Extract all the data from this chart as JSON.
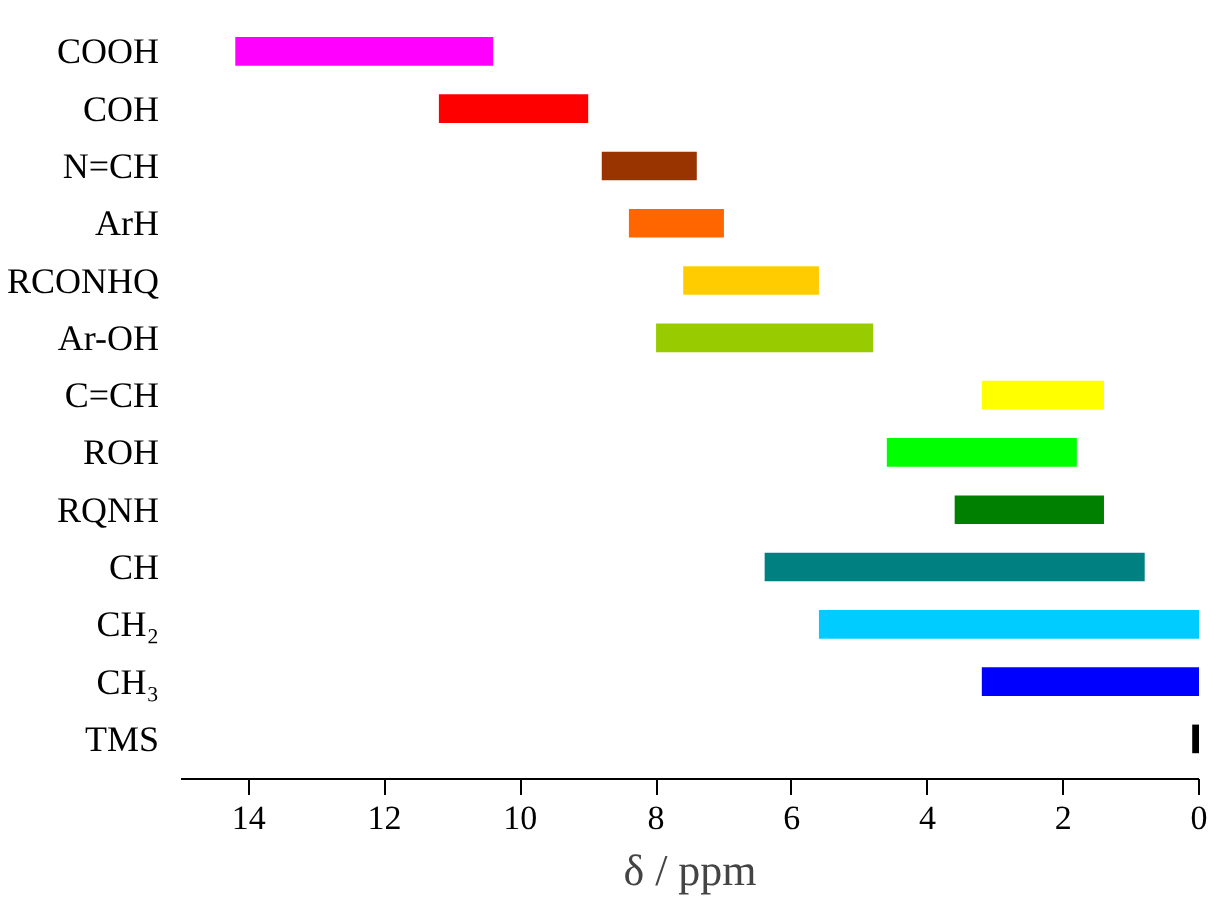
{
  "chart_data": {
    "type": "bar",
    "orientation": "horizontal",
    "categories": [
      "COOH",
      "COH",
      "N=CH",
      "ArH",
      "RCONHQ",
      "Ar-OH",
      "C=CH",
      "ROH",
      "RQNH",
      "CH",
      "CH₂",
      "CH₃",
      "TMS"
    ],
    "base": [
      10.4,
      9.0,
      7.4,
      7.0,
      5.6,
      4.8,
      1.4,
      1.8,
      1.4,
      0.8,
      0,
      0,
      0
    ],
    "values": [
      3.8,
      2.2,
      1.4,
      1.4,
      2.0,
      3.2,
      1.8,
      2.8,
      2.2,
      5.6,
      5.6,
      3.2,
      0.1
    ],
    "colors": [
      "#ff00ff",
      "#ff0000",
      "#993300",
      "#ff6600",
      "#ffcc00",
      "#99cc00",
      "#ffff00",
      "#00ff00",
      "#008000",
      "#008080",
      "#00ccff",
      "#0000ff",
      "#000000"
    ],
    "xlim": [
      15,
      0
    ],
    "xticks": [
      14,
      12,
      10,
      8,
      6,
      4,
      2,
      0
    ],
    "xlabel": "δ / ppm",
    "grid": false
  }
}
